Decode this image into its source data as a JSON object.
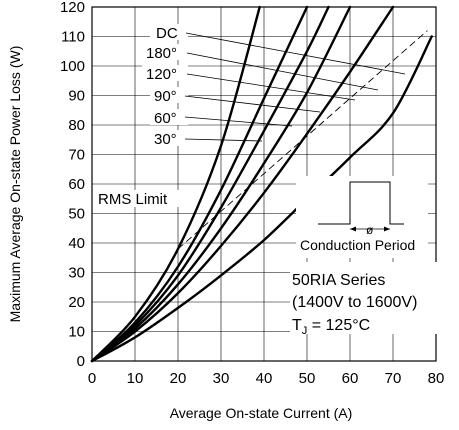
{
  "chart_data": {
    "type": "line",
    "title": "",
    "xlabel": "Average On-state Current (A)",
    "ylabel": "Maximum Average On-state Power Loss (W)",
    "xlim": [
      0,
      80
    ],
    "ylim": [
      0,
      120
    ],
    "x_ticks": [
      0,
      10,
      20,
      30,
      40,
      50,
      60,
      70,
      80
    ],
    "y_ticks": [
      0,
      10,
      20,
      30,
      40,
      50,
      60,
      70,
      80,
      90,
      100,
      110,
      120
    ],
    "x_tick_labels": [
      "0",
      "10",
      "20",
      "30",
      "40",
      "50",
      "60",
      "70",
      "80"
    ],
    "y_tick_labels": [
      "0",
      "10",
      "20",
      "30",
      "40",
      "50",
      "60",
      "70",
      "80",
      "90",
      "100",
      "110",
      "120"
    ],
    "grid": true,
    "series": [
      {
        "name": "DC",
        "points": [
          [
            0,
            0
          ],
          [
            10,
            15
          ],
          [
            20,
            38
          ],
          [
            30,
            73
          ],
          [
            39,
            120
          ]
        ]
      },
      {
        "name": "180°",
        "points": [
          [
            0,
            0
          ],
          [
            10,
            13
          ],
          [
            20,
            32
          ],
          [
            30,
            58
          ],
          [
            40,
            89
          ],
          [
            50,
            120
          ]
        ]
      },
      {
        "name": "120°",
        "points": [
          [
            0,
            0
          ],
          [
            10,
            12
          ],
          [
            20,
            29
          ],
          [
            30,
            52
          ],
          [
            40,
            78
          ],
          [
            50,
            105
          ],
          [
            55,
            120
          ]
        ]
      },
      {
        "name": "90°",
        "points": [
          [
            0,
            0
          ],
          [
            10,
            11
          ],
          [
            20,
            26
          ],
          [
            30,
            45
          ],
          [
            40,
            67
          ],
          [
            50,
            91
          ],
          [
            60,
            120
          ]
        ]
      },
      {
        "name": "60°",
        "points": [
          [
            0,
            0
          ],
          [
            10,
            10
          ],
          [
            20,
            23
          ],
          [
            30,
            39
          ],
          [
            40,
            57
          ],
          [
            50,
            77
          ],
          [
            60,
            98
          ],
          [
            70,
            120
          ]
        ]
      },
      {
        "name": "30°",
        "points": [
          [
            0,
            0
          ],
          [
            10,
            8
          ],
          [
            20,
            18
          ],
          [
            30,
            29
          ],
          [
            40,
            41
          ],
          [
            50,
            55
          ],
          [
            60,
            69
          ],
          [
            70,
            84
          ],
          [
            79,
            110
          ]
        ]
      }
    ],
    "rms_limit": {
      "label": "RMS Limit",
      "points": [
        [
          20,
          38
        ],
        [
          78,
          112
        ]
      ]
    },
    "annotations": {
      "conduction_label": "Conduction Period",
      "phi_symbol": "ø",
      "series_text": "50RIA Series",
      "voltage_text": "(1400V to 1600V)",
      "tj_main": "T",
      "tj_sub": "J",
      "tj_value": " = 125°C"
    }
  }
}
